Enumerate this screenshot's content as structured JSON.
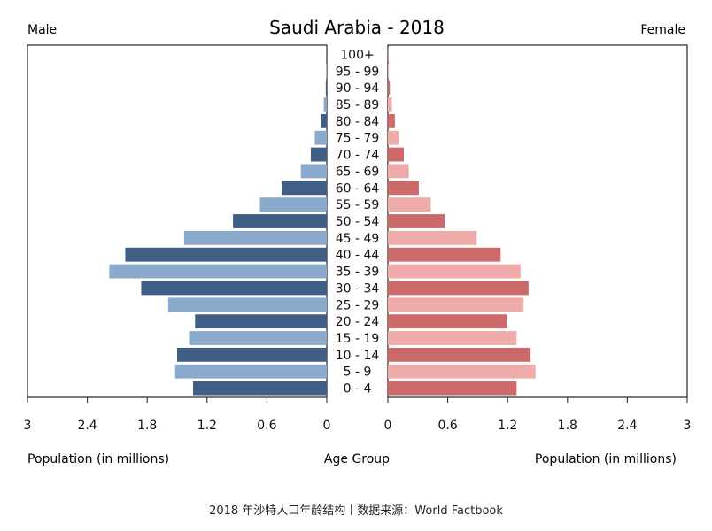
{
  "chart_data": {
    "type": "bar",
    "title": "Saudi Arabia - 2018",
    "left_label": "Male",
    "right_label": "Female",
    "xlabel_left": "Population (in millions)",
    "xlabel_center": "Age Group",
    "xlabel_right": "Population (in millions)",
    "xlim": [
      0,
      3
    ],
    "ticks_left": [
      "3",
      "2.4",
      "1.8",
      "1.2",
      "0.6",
      "0"
    ],
    "ticks_right": [
      "0",
      "0.6",
      "1.2",
      "1.8",
      "2.4",
      "3"
    ],
    "tick_values_left": [
      3,
      2.4,
      1.8,
      1.2,
      0.6,
      0
    ],
    "tick_values_right": [
      0,
      0.6,
      1.2,
      1.8,
      2.4,
      3
    ],
    "categories": [
      "0 - 4",
      "5 - 9",
      "10 - 14",
      "15 - 19",
      "20 - 24",
      "25 - 29",
      "30 - 34",
      "35 - 39",
      "40 - 44",
      "45 - 49",
      "50 - 54",
      "55 - 59",
      "60 - 64",
      "65 - 69",
      "70 - 74",
      "75 - 79",
      "80 - 84",
      "85 - 89",
      "90 - 94",
      "95 - 99",
      "100+"
    ],
    "series": [
      {
        "name": "Male",
        "values": [
          1.34,
          1.52,
          1.5,
          1.38,
          1.32,
          1.59,
          1.86,
          2.18,
          2.02,
          1.43,
          0.94,
          0.67,
          0.45,
          0.26,
          0.16,
          0.12,
          0.06,
          0.03,
          0.01,
          0.005,
          0.002
        ]
      },
      {
        "name": "Female",
        "values": [
          1.29,
          1.48,
          1.43,
          1.29,
          1.19,
          1.36,
          1.41,
          1.33,
          1.13,
          0.89,
          0.57,
          0.43,
          0.31,
          0.21,
          0.16,
          0.11,
          0.07,
          0.04,
          0.02,
          0.01,
          0.005
        ]
      }
    ],
    "colors": {
      "male_dark": "#3f5e86",
      "male_light": "#8aaacd",
      "female_dark": "#cc6a6a",
      "female_light": "#efaaaa"
    }
  },
  "caption": "2018 年沙特人口年龄结构丨数据来源：World Factbook"
}
